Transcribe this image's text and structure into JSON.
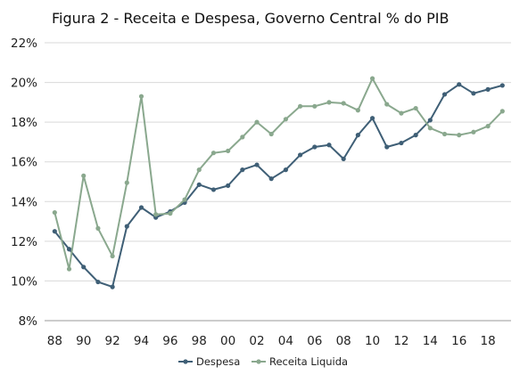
{
  "chart_data": {
    "type": "line",
    "title": "Figura 2 - Receita e Despesa, Governo Central % do PIB",
    "xlabel": "",
    "ylabel": "",
    "ylim": [
      8,
      22
    ],
    "y_ticks": [
      "8%",
      "10%",
      "12%",
      "14%",
      "16%",
      "18%",
      "20%",
      "22%"
    ],
    "x_ticks": [
      "88",
      "90",
      "92",
      "94",
      "96",
      "98",
      "00",
      "02",
      "04",
      "06",
      "08",
      "10",
      "12",
      "14",
      "16",
      "18"
    ],
    "x": [
      1988,
      1989,
      1990,
      1991,
      1992,
      1993,
      1994,
      1995,
      1996,
      1997,
      1998,
      1999,
      2000,
      2001,
      2002,
      2003,
      2004,
      2005,
      2006,
      2007,
      2008,
      2009,
      2010,
      2011,
      2012,
      2013,
      2014,
      2015,
      2016,
      2017,
      2018,
      2019
    ],
    "grid": "horizontal",
    "legend_position": "bottom",
    "colors": {
      "despesa": "#3f5f76",
      "receita": "#8aa88e",
      "grid": "#d9d9d9",
      "axis": "#9a9a9a"
    },
    "series": [
      {
        "name": "Despesa",
        "color": "#3f5f76",
        "values": [
          12.5,
          11.6,
          10.7,
          9.95,
          9.7,
          12.75,
          13.7,
          13.2,
          13.5,
          13.95,
          14.85,
          14.6,
          14.8,
          15.6,
          15.85,
          15.15,
          15.6,
          16.35,
          16.75,
          16.85,
          16.15,
          17.35,
          18.2,
          16.75,
          16.95,
          17.35,
          18.1,
          19.4,
          19.9,
          19.45,
          19.65,
          19.85
        ]
      },
      {
        "name": "Receita Liquida",
        "color": "#8aa88e",
        "values": [
          13.45,
          10.6,
          15.3,
          12.65,
          11.25,
          14.95,
          19.3,
          13.35,
          13.4,
          14.1,
          15.6,
          16.45,
          16.55,
          17.25,
          18.0,
          17.4,
          18.15,
          18.8,
          18.8,
          19.0,
          18.95,
          18.6,
          20.2,
          18.9,
          18.45,
          18.7,
          17.7,
          17.4,
          17.35,
          17.5,
          17.8,
          18.55
        ]
      }
    ]
  }
}
